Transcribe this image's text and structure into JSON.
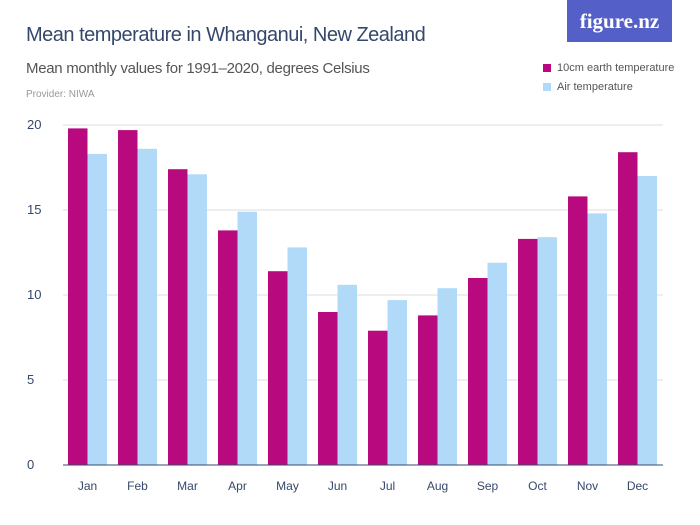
{
  "title": "Mean temperature in Whanganui, New Zealand",
  "subtitle": "Mean monthly values for 1991–2020, degrees Celsius",
  "provider": "Provider: NIWA",
  "logo": "figure.nz",
  "chart_data": {
    "type": "bar",
    "title": "Mean temperature in Whanganui, New Zealand",
    "subtitle": "Mean monthly values for 1991–2020, degrees Celsius",
    "categories": [
      "Jan",
      "Feb",
      "Mar",
      "Apr",
      "May",
      "Jun",
      "Jul",
      "Aug",
      "Sep",
      "Oct",
      "Nov",
      "Dec"
    ],
    "series": [
      {
        "name": "10cm earth temperature",
        "color": "#b8097e",
        "values": [
          19.8,
          19.7,
          17.4,
          13.8,
          11.4,
          9.0,
          7.9,
          8.8,
          11.0,
          13.3,
          15.8,
          18.4
        ]
      },
      {
        "name": "Air temperature",
        "color": "#b1daf9",
        "values": [
          18.3,
          18.6,
          17.1,
          14.9,
          12.8,
          10.6,
          9.7,
          10.4,
          11.9,
          13.4,
          14.8,
          17.0
        ]
      }
    ],
    "ylim": [
      0,
      20
    ],
    "yticks": [
      0,
      5,
      10,
      15,
      20
    ],
    "grid": true,
    "legend": "top-right"
  }
}
